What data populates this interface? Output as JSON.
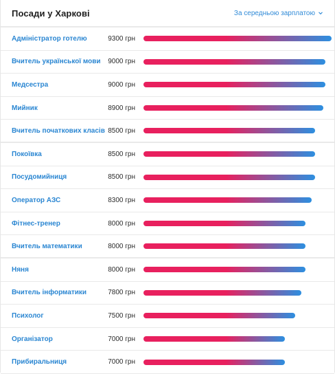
{
  "header": {
    "title": "Посади у Харкові",
    "sort_label": "За середньою зарплатою",
    "sort_icon": "chevron-down-icon"
  },
  "colors": {
    "link": "#2a86d2",
    "bar_start": "#e8205e",
    "bar_end": "#2d8fe0"
  },
  "max_salary": 9300,
  "jobs": [
    {
      "title": "Адміністратор готелю",
      "salary": "9300 грн",
      "value": 9300
    },
    {
      "title": "Вчитель української мови",
      "salary": "9000 грн",
      "value": 9000
    },
    {
      "title": "Медсестра",
      "salary": "9000 грн",
      "value": 9000
    },
    {
      "title": "Мийник",
      "salary": "8900 грн",
      "value": 8900
    },
    {
      "title": "Вчитель початкових класів",
      "salary": "8500 грн",
      "value": 8500
    },
    {
      "title": "Покоївка",
      "salary": "8500 грн",
      "value": 8500
    },
    {
      "title": "Посудомийниця",
      "salary": "8500 грн",
      "value": 8500
    },
    {
      "title": "Оператор АЗС",
      "salary": "8300 грн",
      "value": 8300
    },
    {
      "title": "Фітнес-тренер",
      "salary": "8000 грн",
      "value": 8000
    },
    {
      "title": "Вчитель математики",
      "salary": "8000 грн",
      "value": 8000
    },
    {
      "title": "Няня",
      "salary": "8000 грн",
      "value": 8000
    },
    {
      "title": "Вчитель інформатики",
      "salary": "7800 грн",
      "value": 7800
    },
    {
      "title": "Психолог",
      "salary": "7500 грн",
      "value": 7500
    },
    {
      "title": "Організатор",
      "salary": "7000 грн",
      "value": 7000
    },
    {
      "title": "Прибиральниця",
      "salary": "7000 грн",
      "value": 7000
    }
  ]
}
